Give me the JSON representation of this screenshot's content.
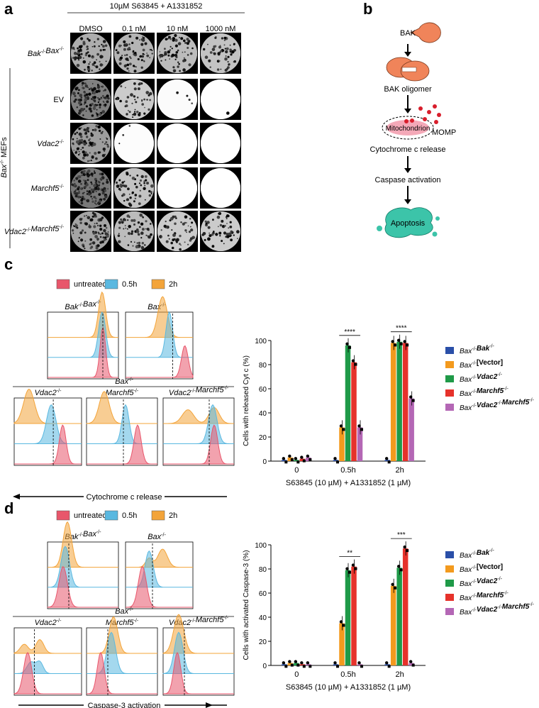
{
  "panels": {
    "a": "a",
    "b": "b",
    "c": "c",
    "d": "d"
  },
  "panel_a": {
    "header": "10µM S63845 + A1331852",
    "columns": [
      "DMSO",
      "0.1 nM",
      "10 nM",
      "1000 nM"
    ],
    "side_label": "Bax-/- MEFs",
    "rows": [
      {
        "base": "Bak",
        "sup": "-/-",
        "base2": "Bax",
        "sup2": "-/-",
        "italic": true,
        "density": [
          0.55,
          0.5,
          0.45,
          0.4
        ]
      },
      {
        "base": "EV",
        "sup": "",
        "base2": "",
        "sup2": "",
        "italic": false,
        "density": [
          0.85,
          0.35,
          0.03,
          0.01
        ]
      },
      {
        "base": "Vdac2",
        "sup": "-/-",
        "base2": "",
        "sup2": "",
        "italic": true,
        "density": [
          0.65,
          0.02,
          0.0,
          0.0
        ]
      },
      {
        "base": "Marchf5",
        "sup": "-/-",
        "base2": "",
        "sup2": "",
        "italic": true,
        "density": [
          0.9,
          0.4,
          0.0,
          0.0
        ]
      },
      {
        "base": "Vdac2",
        "sup": "-/-",
        "base2": "Marchf5",
        "sup2": "-/-",
        "italic": true,
        "density": [
          0.6,
          0.45,
          0.35,
          0.35
        ]
      }
    ]
  },
  "panel_b": {
    "nodes": [
      "BAK",
      "BAK oligomer",
      "Mitochondrion",
      "MOMP",
      "Cytochrome c release",
      "Caspase activation",
      "Apoptosis"
    ],
    "colors": {
      "bak": "#f0845a",
      "apoptosis": "#3cc4a9",
      "mito": "#f4a9b8",
      "dots": "#d81e2c"
    }
  },
  "legend": [
    {
      "label": "untreated",
      "color": "#e8566b"
    },
    {
      "label": "0.5h",
      "color": "#5ab8e0"
    },
    {
      "label": "2h",
      "color": "#f3a43a"
    }
  ],
  "panel_c": {
    "top_labels": [
      "Bak-/-Bax-/-",
      "Bax-/-"
    ],
    "bax_header": "Bax-/-",
    "bottom_labels": [
      "Vdac2-/-",
      "Marchf5-/-",
      "Vdac2-/-Marchf5-/-"
    ],
    "axis_caption": "Cytochrome c release"
  },
  "panel_d": {
    "top_labels": [
      "Bak-/-Bax-/-",
      "Bax-/-"
    ],
    "bax_header": "Bax-/-",
    "bottom_labels": [
      "Vdac2-/-",
      "Marchf5-/-",
      "Vdac2-/-Marchf5-/-"
    ],
    "axis_caption": "Caspase-3 activation"
  },
  "bar_legend": [
    "Bax-/-Bak-/-",
    "Bax-/-[Vector]",
    "Bax-/-Vdac2-/-",
    "Bax-/-Marchf5-/-",
    "Bax-/-Vdac2-/-Marchf5-/-"
  ],
  "chart_data": [
    {
      "type": "bar",
      "title": "",
      "ylabel": "Cells with released Cyt c (%)",
      "xlabel": "S63845 (10 µM) + A1331852 (1 µM)",
      "categories": [
        "0",
        "0.5h",
        "2h"
      ],
      "ylim": [
        0,
        100
      ],
      "yticks": [
        0,
        20,
        40,
        60,
        80,
        100
      ],
      "series": [
        {
          "name": "Bax-/-Bak-/-",
          "color": "#2a4fa8",
          "values": [
            1,
            1,
            1
          ]
        },
        {
          "name": "Bax-/-[Vector]",
          "color": "#f39a1e",
          "values": [
            3,
            28,
            98
          ]
        },
        {
          "name": "Bax-/-Vdac2-/-",
          "color": "#1f9a48",
          "values": [
            1,
            96,
            99
          ]
        },
        {
          "name": "Bax-/-Marchf5-/-",
          "color": "#e6322b",
          "values": [
            2,
            82,
            98
          ]
        },
        {
          "name": "Bax-/-Vdac2-/-Marchf5-/-",
          "color": "#b467b5",
          "values": [
            3,
            28,
            52
          ]
        }
      ],
      "significance": [
        {
          "group": "0.5h",
          "label": "****"
        },
        {
          "group": "2h",
          "label": "****"
        }
      ]
    },
    {
      "type": "bar",
      "title": "",
      "ylabel": "Cells with activated Caspase-3 (%)",
      "xlabel": "S63845 (10 µM) + A1331852 (1 µM)",
      "categories": [
        "0",
        "0.5h",
        "2h"
      ],
      "ylim": [
        0,
        100
      ],
      "yticks": [
        0,
        20,
        40,
        60,
        80,
        100
      ],
      "series": [
        {
          "name": "Bax-/-Bak-/-",
          "color": "#2a4fa8",
          "values": [
            1,
            1,
            1
          ]
        },
        {
          "name": "Bax-/-[Vector]",
          "color": "#f39a1e",
          "values": [
            2,
            35,
            66
          ]
        },
        {
          "name": "Bax-/-Vdac2-/-",
          "color": "#1f9a48",
          "values": [
            2,
            79,
            81
          ]
        },
        {
          "name": "Bax-/-Marchf5-/-",
          "color": "#e6322b",
          "values": [
            1,
            82,
            97
          ]
        },
        {
          "name": "Bax-/-Vdac2-/-Marchf5-/-",
          "color": "#b467b5",
          "values": [
            1,
            1,
            2
          ]
        }
      ],
      "significance": [
        {
          "group": "0.5h",
          "label": "**"
        },
        {
          "group": "2h",
          "label": "***"
        }
      ]
    }
  ]
}
